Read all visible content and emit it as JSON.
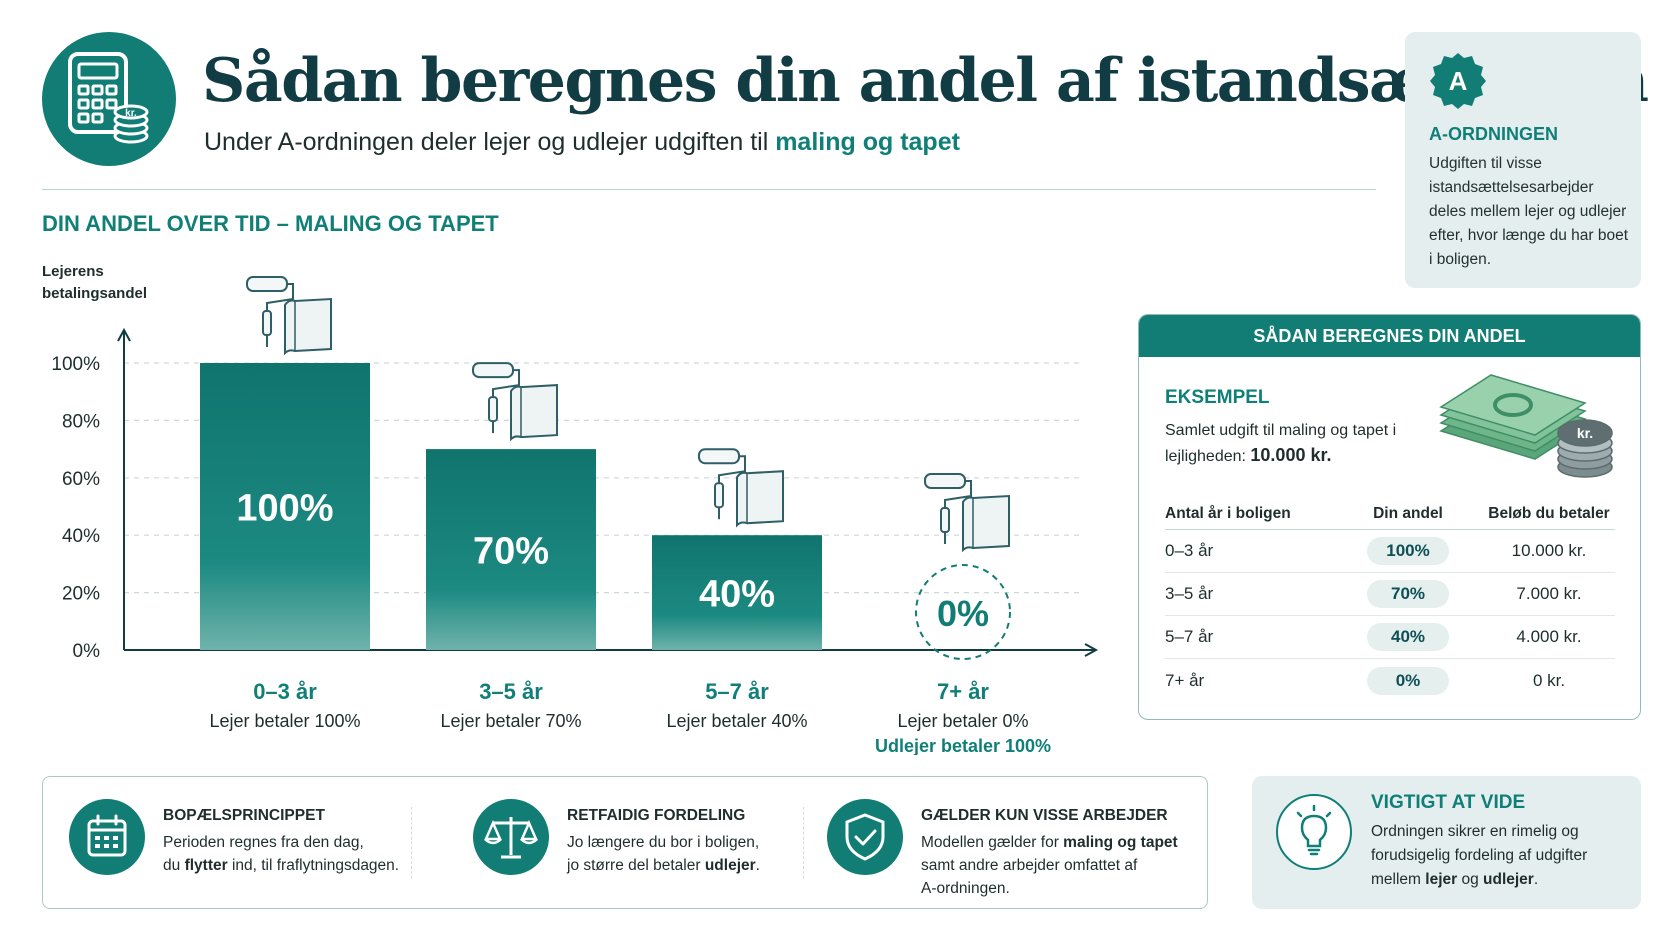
{
  "header": {
    "title": "Sådan beregnes din andel af istandsættelsen",
    "subtitle_prefix": "Under A-ordningen deler lejer og udlejer udgiften til ",
    "subtitle_highlight": "maling og tapet",
    "icon": "calculator-coins-icon",
    "icon_text": "kr."
  },
  "a_card": {
    "badge": "A",
    "title": "A-ORDNINGEN",
    "text": "Udgiften til visse istandsættelsesarbejder deles mellem lejer og udlejer efter, hvor længe du har boet i boligen."
  },
  "chart_heading": "DIN ANDEL OVER TID – MALING OG TAPET",
  "chart_data": {
    "type": "bar",
    "ylabel": "Lejerens betalingsandel",
    "ylim": [
      0,
      100
    ],
    "yticks": [
      "0%",
      "20%",
      "40%",
      "60%",
      "80%",
      "100%"
    ],
    "categories": [
      "0–3 år",
      "3–5 år",
      "5–7 år",
      "7+ år"
    ],
    "values": [
      100,
      70,
      40,
      0
    ],
    "value_labels": [
      "100%",
      "70%",
      "40%",
      "0%"
    ],
    "sublabels": [
      "Lejer betaler 100%",
      "Lejer betaler 70%",
      "Lejer betaler 40%",
      "Lejer betaler 0%"
    ],
    "extra_label": "Udlejer betaler 100%",
    "grid": true,
    "bar_icon": "paint-roller-wallpaper-icon"
  },
  "calc": {
    "header": "SÅDAN BEREGNES DIN ANDEL",
    "example_title": "EKSEMPEL",
    "example_text": "Samlet udgift til maling og tapet i lejligheden:",
    "example_amount": "10.000 kr.",
    "money_icon_text": "kr.",
    "columns": [
      "Antal år i boligen",
      "Din andel",
      "Beløb du betaler"
    ],
    "rows": [
      [
        "0–3 år",
        "100%",
        "10.000 kr."
      ],
      [
        "3–5 år",
        "70%",
        "7.000 kr."
      ],
      [
        "5–7 år",
        "40%",
        "4.000 kr."
      ],
      [
        "7+ år",
        "0%",
        "0 kr."
      ]
    ]
  },
  "features": [
    {
      "icon": "calendar-icon",
      "title": "BOPÆLSPRINCIPPET",
      "line1": "Perioden regnes fra den dag,",
      "line2_a": "du ",
      "line2_b": "flytter",
      "line2_c": " ind, til fraflytningsdagen."
    },
    {
      "icon": "scales-icon",
      "title": "RETFAIDIG FORDELING",
      "line1": "Jo længere du bor i boligen,",
      "line2_a": "jo større del betaler ",
      "line2_b": "udlejer",
      "line2_c": "."
    },
    {
      "icon": "shield-check-icon",
      "title": "GÆLDER KUN VISSE ARBEJDER",
      "line1_a": "Modellen gælder for ",
      "line1_b": "maling og tapet",
      "line2": "samt andre arbejder omfattet af",
      "line3": "A-ordningen."
    }
  ],
  "vigtigt": {
    "icon": "lightbulb-icon",
    "title": "VIGTIGT AT VIDE",
    "line1": "Ordningen sikrer en rimelig og",
    "line2": "forudsigelig fordeling af udgifter",
    "line3_a": "mellem ",
    "line3_b": "lejer",
    "line3_c": " og ",
    "line3_d": "udlejer",
    "line3_e": "."
  },
  "colors": {
    "teal": "#117d74",
    "teal_text": "#0f7f78",
    "dark": "#123c44",
    "light_panel": "#e5eeee"
  }
}
